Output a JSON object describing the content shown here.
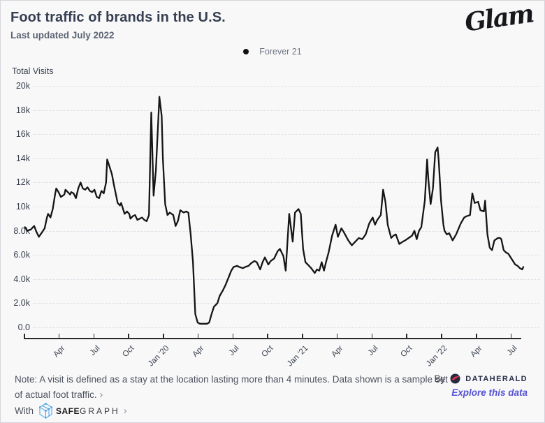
{
  "page": {
    "background": "#f8f8f9",
    "border_color": "#d4d4da"
  },
  "header": {
    "title": "Foot traffic of brands in the U.S.",
    "subtitle": "Last updated July 2022",
    "brand_logo_text": "Glam"
  },
  "legend": {
    "items": [
      {
        "label": "Forever 21",
        "marker_color": "#111111"
      }
    ]
  },
  "chart_data": {
    "type": "line",
    "title": "Foot traffic of brands in the U.S.",
    "ylabel": "Total Visits",
    "series_name": "Forever 21",
    "line_color": "#151515",
    "grid": "horizontal dotted",
    "legend_position": "top-center",
    "ylim": [
      0,
      20
    ],
    "y_unit": "thousands of visits",
    "y_tick_labels": [
      "20k",
      "18k",
      "16k",
      "14k",
      "12k",
      "10k",
      "8.0k",
      "6.0k",
      "4.0k",
      "2.0k",
      "0.0"
    ],
    "y_tick_values": [
      20,
      18,
      16,
      14,
      12,
      10,
      8,
      6,
      4,
      2,
      0
    ],
    "x_unit": "months since Jan 2019 (weekly samples)",
    "x_tick_interval_months": 3,
    "x_tick_labels": [
      "Apr",
      "Jul",
      "Oct",
      "Jan '20",
      "Apr",
      "Jul",
      "Oct",
      "Jan '21",
      "Apr",
      "Jul",
      "Oct",
      "Jan '22",
      "Apr",
      "Jul"
    ],
    "points": [
      [
        0.1,
        8.3
      ],
      [
        0.3,
        8.0
      ],
      [
        0.6,
        8.1
      ],
      [
        0.9,
        8.4
      ],
      [
        1.1,
        7.9
      ],
      [
        1.3,
        7.5
      ],
      [
        1.6,
        7.9
      ],
      [
        1.8,
        8.2
      ],
      [
        2.0,
        9.1
      ],
      [
        2.1,
        9.4
      ],
      [
        2.3,
        9.1
      ],
      [
        2.5,
        9.8
      ],
      [
        2.7,
        11.0
      ],
      [
        2.8,
        11.5
      ],
      [
        3.0,
        11.2
      ],
      [
        3.2,
        10.8
      ],
      [
        3.5,
        11.0
      ],
      [
        3.6,
        11.4
      ],
      [
        3.8,
        11.2
      ],
      [
        4.0,
        11.0
      ],
      [
        4.1,
        11.2
      ],
      [
        4.3,
        11.1
      ],
      [
        4.5,
        10.7
      ],
      [
        4.7,
        11.5
      ],
      [
        4.9,
        12.0
      ],
      [
        5.1,
        11.5
      ],
      [
        5.3,
        11.4
      ],
      [
        5.5,
        11.6
      ],
      [
        5.7,
        11.3
      ],
      [
        5.9,
        11.2
      ],
      [
        6.1,
        11.4
      ],
      [
        6.3,
        10.8
      ],
      [
        6.5,
        10.7
      ],
      [
        6.7,
        11.3
      ],
      [
        6.9,
        11.1
      ],
      [
        7.1,
        12.0
      ],
      [
        7.2,
        13.9
      ],
      [
        7.4,
        13.3
      ],
      [
        7.6,
        12.7
      ],
      [
        7.8,
        11.7
      ],
      [
        8.1,
        10.3
      ],
      [
        8.3,
        10.1
      ],
      [
        8.4,
        10.3
      ],
      [
        8.7,
        9.4
      ],
      [
        8.9,
        9.6
      ],
      [
        9.1,
        9.4
      ],
      [
        9.2,
        9.0
      ],
      [
        9.4,
        9.2
      ],
      [
        9.6,
        9.3
      ],
      [
        9.8,
        8.9
      ],
      [
        10.0,
        9.0
      ],
      [
        10.2,
        9.1
      ],
      [
        10.4,
        8.9
      ],
      [
        10.6,
        8.8
      ],
      [
        10.8,
        9.3
      ],
      [
        11.0,
        17.8
      ],
      [
        11.2,
        10.9
      ],
      [
        11.4,
        13.0
      ],
      [
        11.7,
        19.1
      ],
      [
        11.9,
        17.5
      ],
      [
        12.0,
        14.0
      ],
      [
        12.2,
        10.2
      ],
      [
        12.4,
        9.3
      ],
      [
        12.6,
        9.5
      ],
      [
        12.9,
        9.3
      ],
      [
        13.1,
        8.4
      ],
      [
        13.3,
        8.8
      ],
      [
        13.5,
        9.7
      ],
      [
        13.8,
        9.5
      ],
      [
        14.0,
        9.6
      ],
      [
        14.2,
        9.5
      ],
      [
        14.4,
        7.7
      ],
      [
        14.6,
        5.4
      ],
      [
        14.8,
        1.1
      ],
      [
        15.0,
        0.4
      ],
      [
        15.2,
        0.3
      ],
      [
        15.5,
        0.3
      ],
      [
        15.8,
        0.3
      ],
      [
        16.0,
        0.4
      ],
      [
        16.2,
        1.1
      ],
      [
        16.4,
        1.7
      ],
      [
        16.7,
        2.0
      ],
      [
        16.9,
        2.6
      ],
      [
        17.2,
        3.1
      ],
      [
        17.4,
        3.5
      ],
      [
        17.7,
        4.2
      ],
      [
        17.9,
        4.7
      ],
      [
        18.1,
        5.0
      ],
      [
        18.4,
        5.1
      ],
      [
        18.6,
        5.0
      ],
      [
        18.9,
        4.9
      ],
      [
        19.1,
        5.0
      ],
      [
        19.4,
        5.1
      ],
      [
        19.6,
        5.3
      ],
      [
        19.9,
        5.5
      ],
      [
        20.1,
        5.4
      ],
      [
        20.4,
        4.8
      ],
      [
        20.6,
        5.4
      ],
      [
        20.8,
        5.8
      ],
      [
        21.1,
        5.2
      ],
      [
        21.3,
        5.5
      ],
      [
        21.6,
        5.7
      ],
      [
        21.9,
        6.3
      ],
      [
        22.1,
        6.5
      ],
      [
        22.4,
        5.9
      ],
      [
        22.6,
        4.7
      ],
      [
        22.9,
        9.4
      ],
      [
        23.2,
        7.1
      ],
      [
        23.4,
        9.5
      ],
      [
        23.7,
        9.8
      ],
      [
        23.9,
        9.4
      ],
      [
        24.1,
        6.5
      ],
      [
        24.3,
        5.4
      ],
      [
        24.5,
        5.2
      ],
      [
        24.8,
        4.9
      ],
      [
        25.1,
        4.5
      ],
      [
        25.3,
        4.8
      ],
      [
        25.5,
        4.7
      ],
      [
        25.7,
        5.4
      ],
      [
        25.9,
        4.7
      ],
      [
        26.1,
        5.5
      ],
      [
        26.3,
        6.2
      ],
      [
        26.6,
        7.6
      ],
      [
        26.9,
        8.5
      ],
      [
        27.1,
        7.5
      ],
      [
        27.4,
        8.2
      ],
      [
        27.6,
        7.9
      ],
      [
        28.0,
        7.2
      ],
      [
        28.3,
        6.8
      ],
      [
        28.6,
        7.1
      ],
      [
        28.9,
        7.4
      ],
      [
        29.2,
        7.3
      ],
      [
        29.5,
        7.7
      ],
      [
        29.8,
        8.6
      ],
      [
        30.1,
        9.1
      ],
      [
        30.3,
        8.5
      ],
      [
        30.5,
        8.9
      ],
      [
        30.8,
        9.3
      ],
      [
        31.0,
        11.4
      ],
      [
        31.2,
        10.4
      ],
      [
        31.4,
        8.5
      ],
      [
        31.7,
        7.4
      ],
      [
        31.9,
        7.6
      ],
      [
        32.1,
        7.7
      ],
      [
        32.4,
        6.9
      ],
      [
        32.7,
        7.1
      ],
      [
        32.9,
        7.2
      ],
      [
        33.2,
        7.4
      ],
      [
        33.5,
        7.6
      ],
      [
        33.7,
        8.0
      ],
      [
        33.9,
        7.3
      ],
      [
        34.1,
        8.0
      ],
      [
        34.3,
        8.3
      ],
      [
        34.6,
        10.5
      ],
      [
        34.8,
        13.9
      ],
      [
        34.9,
        12.3
      ],
      [
        35.1,
        10.2
      ],
      [
        35.3,
        11.5
      ],
      [
        35.5,
        14.5
      ],
      [
        35.7,
        14.9
      ],
      [
        35.8,
        13.8
      ],
      [
        36.0,
        10.5
      ],
      [
        36.2,
        8.5
      ],
      [
        36.3,
        8.0
      ],
      [
        36.5,
        7.7
      ],
      [
        36.7,
        7.8
      ],
      [
        37.0,
        7.2
      ],
      [
        37.3,
        7.7
      ],
      [
        37.7,
        8.6
      ],
      [
        38.0,
        9.1
      ],
      [
        38.2,
        9.2
      ],
      [
        38.5,
        9.3
      ],
      [
        38.7,
        11.1
      ],
      [
        38.9,
        10.3
      ],
      [
        39.2,
        10.4
      ],
      [
        39.4,
        9.7
      ],
      [
        39.7,
        9.6
      ],
      [
        39.8,
        10.5
      ],
      [
        40.0,
        7.7
      ],
      [
        40.2,
        6.6
      ],
      [
        40.4,
        6.4
      ],
      [
        40.6,
        7.2
      ],
      [
        40.9,
        7.4
      ],
      [
        41.1,
        7.4
      ],
      [
        41.2,
        7.3
      ],
      [
        41.4,
        6.4
      ],
      [
        41.6,
        6.2
      ],
      [
        41.8,
        6.1
      ],
      [
        42.0,
        5.8
      ],
      [
        42.2,
        5.5
      ],
      [
        42.4,
        5.2
      ],
      [
        42.6,
        5.1
      ],
      [
        42.8,
        4.9
      ],
      [
        43.0,
        4.8
      ],
      [
        43.1,
        5.0
      ]
    ]
  },
  "footer": {
    "note_text": "Note: A visit is defined as a stay at the location lasting more than 4 minutes. Data shown is a sample set of actual foot traffic.",
    "note_chevron": "›",
    "with_label": "With",
    "safegraph_bold": "SAFE",
    "safegraph_light": "GRAPH",
    "safegraph_chevron": "›",
    "by_label": "By",
    "dataherald_label": "DATAHERALD",
    "explore_link": "Explore this data",
    "accent_link_color": "#5553d2",
    "safegraph_blue": "#3fa0e8",
    "dataherald_red": "#e0314b",
    "dataherald_navy": "#242b3e"
  }
}
